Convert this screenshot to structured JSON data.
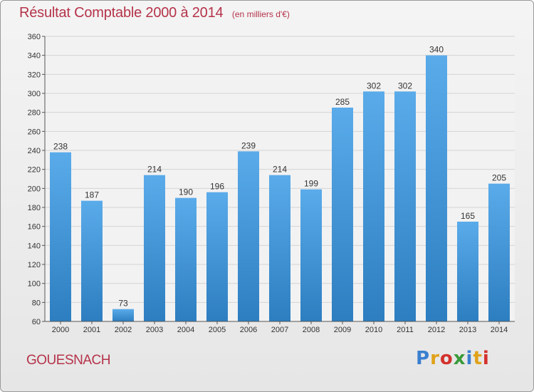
{
  "header": {
    "title": "Résultat Comptable 2000 à 2014",
    "subtitle": "(en milliers d'€)"
  },
  "footer": {
    "place": "GOUESNACH",
    "logo_letters": [
      {
        "ch": "P",
        "color": "#3a7fd0"
      },
      {
        "ch": "r",
        "color": "#e0a21a"
      },
      {
        "ch": "o",
        "color": "#d3312d"
      },
      {
        "ch": "x",
        "color": "#3a9a3a"
      },
      {
        "ch": "i",
        "color": "#3a7fd0"
      },
      {
        "ch": "t",
        "color": "#e0a21a"
      },
      {
        "ch": "i",
        "color": "#d3312d"
      }
    ]
  },
  "colors": {
    "bar_top": "#5aabea",
    "bar_bottom": "#2d7ec0",
    "title": "#b5334a",
    "grid": "#d4d4d4"
  },
  "chart_data": {
    "type": "bar",
    "title": "Résultat Comptable 2000 à 2014",
    "subtitle": "(en milliers d'€)",
    "categories": [
      "2000",
      "2001",
      "2002",
      "2003",
      "2004",
      "2005",
      "2006",
      "2007",
      "2008",
      "2009",
      "2010",
      "2011",
      "2012",
      "2013",
      "2014"
    ],
    "values": [
      238,
      187,
      73,
      214,
      190,
      196,
      239,
      214,
      199,
      285,
      302,
      302,
      340,
      165,
      205
    ],
    "ylim": [
      60,
      360
    ],
    "yticks": [
      60,
      80,
      100,
      120,
      140,
      160,
      180,
      200,
      220,
      240,
      260,
      280,
      300,
      320,
      340,
      360
    ],
    "grid": true,
    "xlabel": "",
    "ylabel": ""
  }
}
